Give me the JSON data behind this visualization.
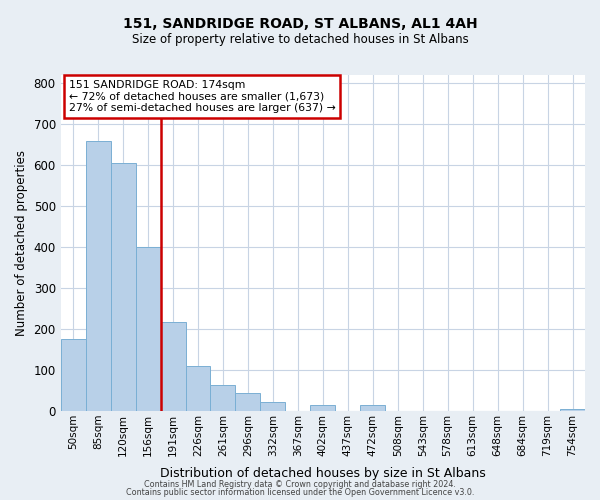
{
  "title": "151, SANDRIDGE ROAD, ST ALBANS, AL1 4AH",
  "subtitle": "Size of property relative to detached houses in St Albans",
  "xlabel": "Distribution of detached houses by size in St Albans",
  "ylabel": "Number of detached properties",
  "bin_labels": [
    "50sqm",
    "85sqm",
    "120sqm",
    "156sqm",
    "191sqm",
    "226sqm",
    "261sqm",
    "296sqm",
    "332sqm",
    "367sqm",
    "402sqm",
    "437sqm",
    "472sqm",
    "508sqm",
    "543sqm",
    "578sqm",
    "613sqm",
    "648sqm",
    "684sqm",
    "719sqm",
    "754sqm"
  ],
  "bar_heights": [
    175,
    660,
    605,
    400,
    218,
    110,
    63,
    45,
    22,
    0,
    15,
    0,
    14,
    0,
    0,
    0,
    0,
    0,
    0,
    0,
    5
  ],
  "bar_color": "#b8d0e8",
  "bar_edge_color": "#7aafd4",
  "vline_color": "#cc0000",
  "vline_position": 3.5,
  "annotation_title": "151 SANDRIDGE ROAD: 174sqm",
  "annotation_line1": "← 72% of detached houses are smaller (1,673)",
  "annotation_line2": "27% of semi-detached houses are larger (637) →",
  "annotation_box_color": "#cc0000",
  "ylim": [
    0,
    820
  ],
  "yticks": [
    0,
    100,
    200,
    300,
    400,
    500,
    600,
    700,
    800
  ],
  "footer1": "Contains HM Land Registry data © Crown copyright and database right 2024.",
  "footer2": "Contains public sector information licensed under the Open Government Licence v3.0.",
  "bg_color": "#e8eef4",
  "plot_bg_color": "#ffffff",
  "grid_color": "#c8d4e4"
}
